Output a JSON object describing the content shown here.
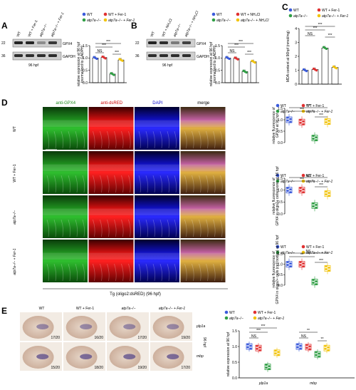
{
  "colors": {
    "wt": "#3b5bdb",
    "wt_fer": "#e03131",
    "mut": "#2f9e44",
    "mut_fer": "#f2c40d",
    "nh4": "#e03131"
  },
  "panels": {
    "A": {
      "letter": "A",
      "blot": {
        "kda_top": "22",
        "kda_bot": "36",
        "band_top": "GPX4",
        "band_bot": "GAPDH",
        "lanes": [
          "WT",
          "WT + Fer-1",
          "atp7a−/−",
          "atp7a−/− + Fer-1"
        ],
        "stage": "96 hpf"
      },
      "legend": [
        "WT",
        "WT + Fer-1",
        "atp7a−/−",
        "atp7a−/− + Fer-1"
      ],
      "ylabel1": "relative expression at 96 hpf",
      "ylabel2": "(normalized to GADPH)",
      "yticks": [
        "1.5",
        "1.0",
        "0.5",
        "0.0"
      ],
      "sig": [
        "***",
        "***",
        "NS",
        "***"
      ],
      "chart_data": {
        "type": "bar",
        "categories": [
          "WT",
          "WT + Fer-1",
          "atp7a−/−",
          "atp7a−/− + Fer-1"
        ],
        "values": [
          1.0,
          1.02,
          0.35,
          0.92
        ],
        "ylim": [
          0,
          1.5
        ],
        "ylabel": "relative expression at 96 hpf (normalized to GADPH)"
      }
    },
    "B": {
      "letter": "B",
      "blot": {
        "kda_top": "22",
        "kda_bot": "36",
        "band_top": "GPX4",
        "band_bot": "GAPDH",
        "lanes": [
          "WT",
          "WT + NH₄Cl",
          "atp7a−/−",
          "atp7a−/− + NH₄Cl"
        ],
        "stage": "96 hpf"
      },
      "legend": [
        "WT",
        "WT + NH₄Cl",
        "atp7a−/−",
        "atp7a−/− + NH₄Cl"
      ],
      "ylabel1": "relative expression at 96 hpf",
      "ylabel2": "(normalized to GADPH)",
      "yticks": [
        "1.5",
        "1.0",
        "0.5",
        "0.0"
      ],
      "sig": [
        "***",
        "***",
        "NS",
        "***"
      ],
      "chart_data": {
        "type": "bar",
        "categories": [
          "WT",
          "WT + NH₄Cl",
          "atp7a−/−",
          "atp7a−/− + NH₄Cl"
        ],
        "values": [
          1.0,
          0.98,
          0.45,
          0.85
        ],
        "ylim": [
          0,
          1.5
        ],
        "ylabel": "relative expression at 96 hpf (normalized to GADPH)"
      }
    },
    "C": {
      "letter": "C",
      "legend": [
        "WT",
        "WT + Fer-1",
        "atp7a−/−",
        "atp7a−/− + Fer-1"
      ],
      "ylabel": "MDA content at 96hpf (nmol/mg)",
      "yticks": [
        "4",
        "3",
        "2",
        "1",
        "0"
      ],
      "sig": [
        "***",
        "***",
        "NS",
        "***"
      ],
      "chart_data": {
        "type": "bar",
        "categories": [
          "WT",
          "WT + Fer-1",
          "atp7a−/−",
          "atp7a−/− + Fer-1"
        ],
        "values": [
          1.0,
          1.05,
          2.6,
          1.2
        ],
        "ylim": [
          0,
          4
        ],
        "ylabel": "MDA content at 96hpf (nmol/mg)"
      }
    },
    "D": {
      "letter": "D",
      "col_headers": [
        "anti-GPX4",
        "anti-dsRED",
        "DAPI",
        "merge"
      ],
      "row_labels": [
        "WT",
        "WT + Fer-1",
        "atp7a−/−",
        "atp7a−/− + Fer-1"
      ],
      "footer": "Tg (oligo2:dsRED) (96 hpf)",
      "plots": [
        {
          "legend": [
            "WT",
            "WT + Fer-1",
            "atp7a−/−",
            "atp7a−/− + Fer-1"
          ],
          "ylabel1": "relative fluorescence of",
          "ylabel2": "GPX4 at 96 hpf",
          "yticks": [
            "1.5",
            "1.0",
            "0.5",
            "0.0"
          ],
          "sig": [
            "***",
            "***",
            "***"
          ],
          "chart_data": {
            "type": "boxplot",
            "categories": [
              "WT",
              "WT + Fer-1",
              "atp7a−/−",
              "atp7a−/− + Fer-1"
            ],
            "values": [
              1.0,
              0.9,
              0.2,
              0.92
            ],
            "ylim": [
              0,
              1.5
            ]
          }
        },
        {
          "legend": [
            "WT",
            "WT + Fer-1",
            "atp7a−/−",
            "atp7a−/− + Fer-1"
          ],
          "ylabel1": "relative fluorescence of",
          "ylabel2": "GPX4 in oligo2+ cells/axons at 96 hpf",
          "yticks": [
            "1.5",
            "1.0",
            "0.5",
            "0.0"
          ],
          "sig": [
            "***",
            "NS",
            "***"
          ],
          "chart_data": {
            "type": "boxplot",
            "categories": [
              "WT",
              "WT + Fer-1",
              "atp7a−/−",
              "atp7a−/− + Fer-1"
            ],
            "values": [
              1.0,
              1.0,
              0.35,
              0.85
            ],
            "ylim": [
              0,
              1.5
            ]
          }
        },
        {
          "legend": [
            "WT",
            "WT + Fer-1",
            "atp7a−/−",
            "atp7a−/− + Fer-1"
          ],
          "ylabel1": "relative fluorescence of",
          "ylabel2": "GPX4 in oligo2+ cells (cell bodies) at 96 hpf",
          "yticks": [
            "1.5",
            "1.0",
            "0.5",
            "0.0"
          ],
          "sig": [
            "**",
            "NS",
            "***"
          ],
          "chart_data": {
            "type": "boxplot",
            "categories": [
              "WT",
              "WT + Fer-1",
              "atp7a−/−",
              "atp7a−/− + Fer-1"
            ],
            "values": [
              1.0,
              1.0,
              0.15,
              0.8
            ],
            "ylim": [
              0,
              1.5
            ]
          }
        }
      ]
    },
    "E": {
      "letter": "E",
      "col_headers": [
        "WT",
        "WT + Fer-1",
        "atp7a−/−",
        "atp7a−/− + Fer-1"
      ],
      "row_labels": [
        "plp1a",
        "mbp"
      ],
      "stage": "96 hpf",
      "counts": [
        [
          "17/20",
          "16/20",
          "17/20",
          "19/20"
        ],
        [
          "15/20",
          "18/20",
          "19/20",
          "17/20"
        ]
      ],
      "legend": [
        "WT",
        "WT + Fer-1",
        "atp7a−/−",
        "atp7a−/− + Fer-1"
      ],
      "ylabel": "relative expression at 96 hpf",
      "yticks": [
        "1.5",
        "1.0",
        "0.5",
        "0.0"
      ],
      "xcats": [
        "plp1a",
        "mbp"
      ],
      "sig": [
        "***",
        "***",
        "NS",
        "NS",
        "**",
        "**"
      ],
      "chart_data": {
        "type": "boxplot",
        "categories": [
          "plp1a",
          "mbp"
        ],
        "series": [
          {
            "name": "WT",
            "values": [
              1.0,
              1.0
            ]
          },
          {
            "name": "WT + Fer-1",
            "values": [
              0.95,
              0.98
            ]
          },
          {
            "name": "atp7a−/−",
            "values": [
              0.35,
              0.75
            ]
          },
          {
            "name": "atp7a−/− + Fer-1",
            "values": [
              0.8,
              0.95
            ]
          }
        ],
        "ylim": [
          0,
          1.5
        ],
        "ylabel": "relative expression at 96 hpf"
      }
    }
  }
}
